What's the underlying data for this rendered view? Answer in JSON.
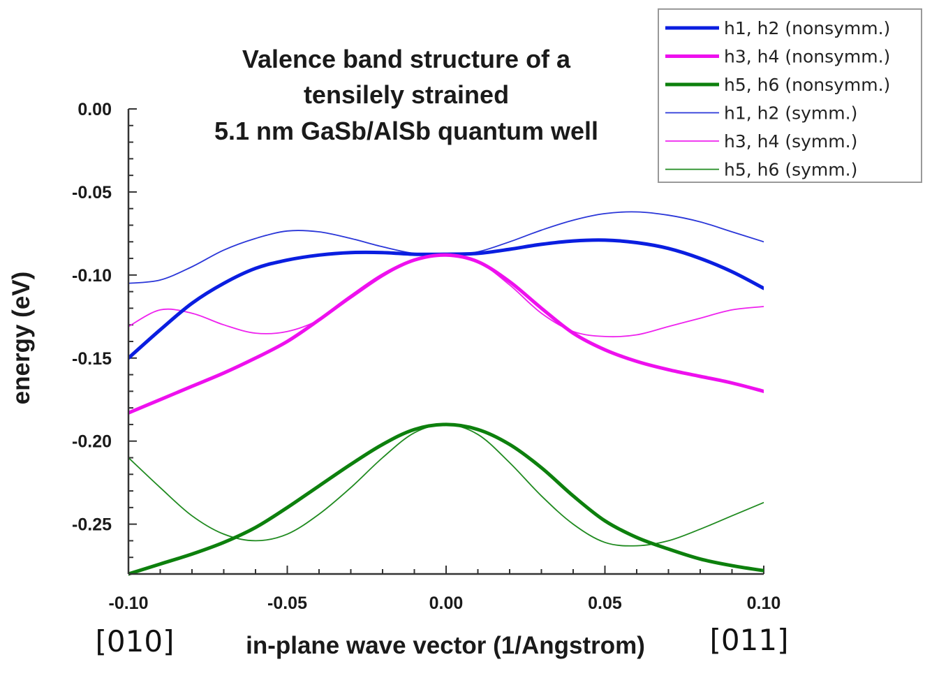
{
  "chart_data": {
    "type": "line",
    "title": [
      "Valence band structure of a",
      "tensilely strained",
      "5.1 nm GaSb/AlSb quantum well"
    ],
    "xlabel": "in-plane wave vector (1/Angstrom)",
    "ylabel": "energy (eV)",
    "xlim": [
      -0.1,
      0.1
    ],
    "ylim": [
      -0.28,
      0.0
    ],
    "xticks": [
      -0.1,
      -0.05,
      0.0,
      0.05,
      0.1
    ],
    "xtick_labels": [
      "-0.10",
      "-0.05",
      "0.00",
      "0.05",
      "0.10"
    ],
    "yticks": [
      0.0,
      -0.05,
      -0.1,
      -0.15,
      -0.2,
      -0.25
    ],
    "ytick_labels": [
      "0.00",
      "-0.05",
      "-0.10",
      "-0.15",
      "-0.20",
      "-0.25"
    ],
    "direction_labels": {
      "left": "[010]",
      "right": "[011]"
    },
    "legend_position": "top-right",
    "series": [
      {
        "name": "h1, h2 (nonsymm.)",
        "color": "#0a1ee0",
        "weight": "thick",
        "x": [
          -0.1,
          -0.09,
          -0.08,
          -0.07,
          -0.06,
          -0.05,
          -0.04,
          -0.03,
          -0.02,
          -0.01,
          0.0,
          0.01,
          0.02,
          0.03,
          0.04,
          0.05,
          0.06,
          0.07,
          0.08,
          0.09,
          0.1
        ],
        "y": [
          -0.15,
          -0.133,
          -0.117,
          -0.105,
          -0.096,
          -0.091,
          -0.088,
          -0.0865,
          -0.0865,
          -0.0875,
          -0.0875,
          -0.087,
          -0.0845,
          -0.0815,
          -0.0795,
          -0.079,
          -0.0805,
          -0.084,
          -0.09,
          -0.098,
          -0.108
        ]
      },
      {
        "name": "h3, h4 (nonsymm.)",
        "color": "#ee10ee",
        "weight": "thick",
        "x": [
          -0.1,
          -0.09,
          -0.08,
          -0.07,
          -0.06,
          -0.05,
          -0.04,
          -0.03,
          -0.02,
          -0.01,
          0.0,
          0.01,
          0.02,
          0.03,
          0.04,
          0.05,
          0.06,
          0.07,
          0.08,
          0.09,
          0.1
        ],
        "y": [
          -0.183,
          -0.175,
          -0.167,
          -0.159,
          -0.15,
          -0.14,
          -0.127,
          -0.113,
          -0.1,
          -0.091,
          -0.088,
          -0.092,
          -0.104,
          -0.12,
          -0.135,
          -0.145,
          -0.152,
          -0.157,
          -0.161,
          -0.165,
          -0.17
        ]
      },
      {
        "name": "h5, h6 (nonsymm.)",
        "color": "#0d800d",
        "weight": "thick",
        "x": [
          -0.1,
          -0.09,
          -0.08,
          -0.07,
          -0.06,
          -0.05,
          -0.04,
          -0.03,
          -0.02,
          -0.01,
          0.0,
          0.01,
          0.02,
          0.03,
          0.04,
          0.05,
          0.06,
          0.07,
          0.08,
          0.09,
          0.1
        ],
        "y": [
          -0.28,
          -0.274,
          -0.268,
          -0.261,
          -0.252,
          -0.24,
          -0.227,
          -0.214,
          -0.202,
          -0.193,
          -0.19,
          -0.193,
          -0.202,
          -0.216,
          -0.233,
          -0.248,
          -0.258,
          -0.265,
          -0.271,
          -0.275,
          -0.278
        ]
      },
      {
        "name": "h1, h2 (symm.)",
        "color": "#2a36d8",
        "weight": "thin",
        "x": [
          -0.1,
          -0.09,
          -0.08,
          -0.07,
          -0.06,
          -0.05,
          -0.04,
          -0.03,
          -0.02,
          -0.01,
          0.0,
          0.01,
          0.02,
          0.03,
          0.04,
          0.05,
          0.06,
          0.07,
          0.08,
          0.09,
          0.1
        ],
        "y": [
          -0.105,
          -0.103,
          -0.095,
          -0.085,
          -0.078,
          -0.0735,
          -0.074,
          -0.078,
          -0.083,
          -0.087,
          -0.088,
          -0.086,
          -0.08,
          -0.073,
          -0.067,
          -0.063,
          -0.062,
          -0.064,
          -0.068,
          -0.074,
          -0.08
        ]
      },
      {
        "name": "h3, h4 (symm.)",
        "color": "#ee22ee",
        "weight": "thin",
        "x": [
          -0.1,
          -0.09,
          -0.08,
          -0.07,
          -0.06,
          -0.05,
          -0.04,
          -0.03,
          -0.02,
          -0.01,
          0.0,
          0.01,
          0.02,
          0.03,
          0.04,
          0.05,
          0.06,
          0.07,
          0.08,
          0.09,
          0.1
        ],
        "y": [
          -0.131,
          -0.121,
          -0.123,
          -0.13,
          -0.135,
          -0.134,
          -0.127,
          -0.114,
          -0.101,
          -0.091,
          -0.088,
          -0.092,
          -0.106,
          -0.123,
          -0.134,
          -0.137,
          -0.136,
          -0.131,
          -0.126,
          -0.121,
          -0.119
        ]
      },
      {
        "name": "h5, h6 (symm.)",
        "color": "#1f8a1f",
        "weight": "thin",
        "x": [
          -0.1,
          -0.09,
          -0.08,
          -0.07,
          -0.06,
          -0.05,
          -0.04,
          -0.03,
          -0.02,
          -0.01,
          0.0,
          0.01,
          0.02,
          0.03,
          0.04,
          0.05,
          0.06,
          0.07,
          0.08,
          0.09,
          0.1
        ],
        "y": [
          -0.21,
          -0.228,
          -0.245,
          -0.256,
          -0.26,
          -0.256,
          -0.244,
          -0.228,
          -0.21,
          -0.195,
          -0.19,
          -0.196,
          -0.213,
          -0.233,
          -0.25,
          -0.261,
          -0.263,
          -0.26,
          -0.253,
          -0.245,
          -0.237
        ]
      }
    ]
  }
}
